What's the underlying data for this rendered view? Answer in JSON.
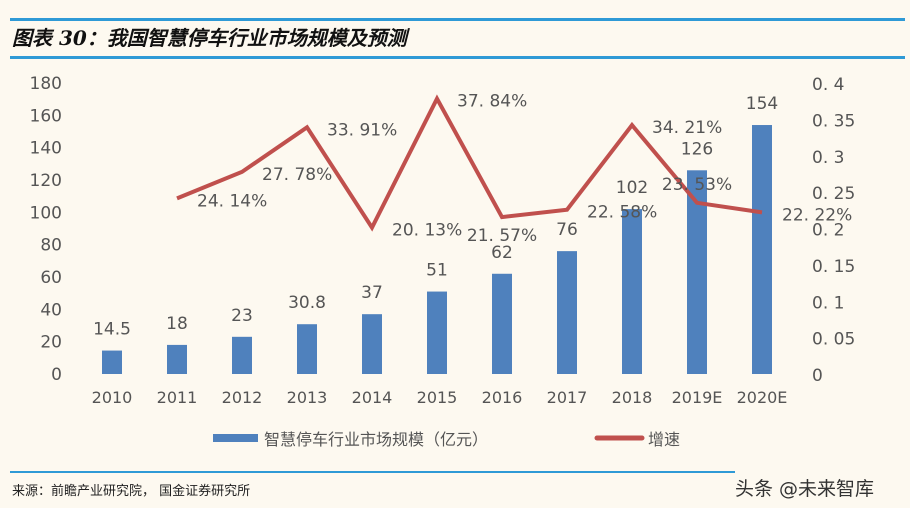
{
  "title": "图表 30：我国智慧停车行业市场规模及预测",
  "source": "来源：前瞻产业研究院， 国金证券研究所",
  "watermark": "头条 @未来智库",
  "chart_data": {
    "type": "bar+line",
    "categories": [
      "2010",
      "2011",
      "2012",
      "2013",
      "2014",
      "2015",
      "2016",
      "2017",
      "2018",
      "2019E",
      "2020E"
    ],
    "series": [
      {
        "name": "智慧停车行业市场规模（亿元）",
        "type": "bar",
        "axis": "left",
        "color": "#4f81bd",
        "values": [
          14.5,
          18,
          23,
          30.8,
          37,
          51,
          62,
          76,
          102,
          126,
          154
        ],
        "labels": [
          "14.5",
          "18",
          "23",
          "30.8",
          "37",
          "51",
          "62",
          "76",
          "102",
          "126",
          "154"
        ]
      },
      {
        "name": "增速",
        "type": "line",
        "axis": "right",
        "color": "#c0504d",
        "values": [
          null,
          0.2414,
          0.2778,
          0.3391,
          0.2013,
          0.3784,
          0.2157,
          0.2258,
          0.3421,
          0.2353,
          0.2222
        ],
        "labels": [
          "",
          "24.14%",
          "27.78%",
          "33.91%",
          "20.13%",
          "37.84%",
          "21.57%",
          "22.58%",
          "34.21%",
          "23.53%",
          "22.22%"
        ]
      }
    ],
    "left_axis": {
      "ylim": [
        0,
        180
      ],
      "ticks": [
        "0",
        "20",
        "40",
        "60",
        "80",
        "100",
        "120",
        "140",
        "160",
        "180"
      ]
    },
    "right_axis": {
      "ylim": [
        0,
        0.4
      ],
      "ticks": [
        "0",
        "0.05",
        "0.1",
        "0.15",
        "0.2",
        "0.25",
        "0.3",
        "0.35",
        "0.4"
      ]
    },
    "grid": false,
    "legend": "bottom"
  }
}
